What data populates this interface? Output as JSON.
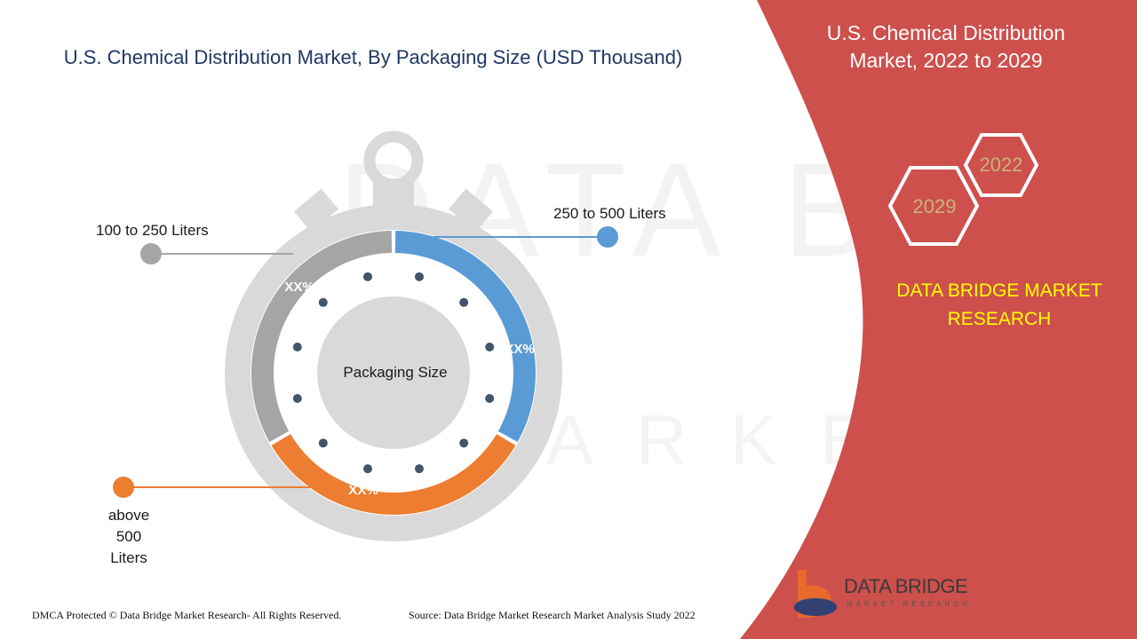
{
  "title": "U.S. Chemical Distribution Market, By Packaging Size (USD Thousand)",
  "side_panel": {
    "title": "U.S. Chemical Distribution Market, 2022 to 2029",
    "year_start": "2022",
    "year_end": "2029",
    "brand": "DATA BRIDGE MARKET RESEARCH"
  },
  "chart_data": {
    "type": "pie",
    "center_label": "Packaging Size",
    "categories": [
      "250 to 500 Liters",
      "above 500 Liters",
      "100 to 250 Liters"
    ],
    "value_labels": [
      "XX%",
      "XX%",
      "XX%"
    ],
    "colors": [
      "#5b9bd5",
      "#ed7d31",
      "#a5a5a5"
    ]
  },
  "labels": {
    "l100": "100 to 250 Liters",
    "l250": "250 to 500 Liters",
    "l500_line1": "above",
    "l500_line2": "500",
    "l500_line3": "Liters"
  },
  "footer": {
    "left": "DMCA Protected © Data Bridge Market Research- All Rights Reserved.",
    "right": "Source: Data Bridge Market Research Market Analysis Study 2022"
  },
  "logo": {
    "name": "DATA BRIDGE",
    "sub": "MARKET RESEARCH"
  },
  "colors": {
    "panel_red": "#cd504d",
    "title_blue": "#1f3864",
    "brand_yellow": "#ffff00",
    "year_gold": "#c9b37a"
  }
}
